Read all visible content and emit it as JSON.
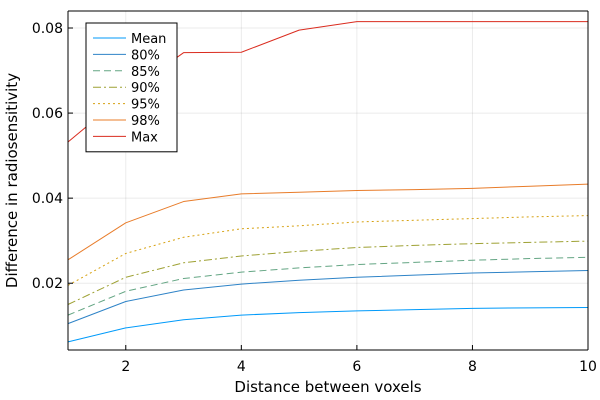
{
  "chart_data": {
    "type": "line",
    "xlabel": "Distance between voxels",
    "ylabel": "Difference in radiosensitivity",
    "xlim": [
      1,
      10
    ],
    "ylim": [
      0.0043,
      0.084
    ],
    "xticks": [
      2,
      4,
      6,
      8,
      10
    ],
    "xtick_labels": [
      "2",
      "4",
      "6",
      "8",
      "10"
    ],
    "yticks": [
      0.02,
      0.04,
      0.06,
      0.08
    ],
    "ytick_labels": [
      "0.02",
      "0.04",
      "0.06",
      "0.08"
    ],
    "grid": true,
    "legend_position": "top-left",
    "x": [
      1,
      2,
      3,
      4,
      5,
      6,
      7,
      8,
      9,
      10
    ],
    "series": [
      {
        "name": "Mean",
        "color": "#009AFA",
        "dash": "solid",
        "values": [
          0.0062,
          0.0095,
          0.0114,
          0.0125,
          0.0131,
          0.0135,
          0.0138,
          0.0141,
          0.0142,
          0.0143
        ]
      },
      {
        "name": "80%",
        "color": "#2E83C7",
        "dash": "solid",
        "values": [
          0.0105,
          0.0157,
          0.0184,
          0.0198,
          0.0207,
          0.0214,
          0.0219,
          0.0224,
          0.0227,
          0.023
        ]
      },
      {
        "name": "85%",
        "color": "#63A583",
        "dash": "dashed",
        "values": [
          0.0125,
          0.0181,
          0.0211,
          0.0226,
          0.0236,
          0.0244,
          0.0249,
          0.0254,
          0.0258,
          0.0261
        ]
      },
      {
        "name": "90%",
        "color": "#9EA133",
        "dash": "dashdot",
        "values": [
          0.015,
          0.0214,
          0.0248,
          0.0264,
          0.0275,
          0.0284,
          0.0289,
          0.0293,
          0.0296,
          0.0299
        ]
      },
      {
        "name": "95%",
        "color": "#D6A111",
        "dash": "dotted",
        "values": [
          0.0195,
          0.027,
          0.0308,
          0.0328,
          0.0335,
          0.0344,
          0.0348,
          0.0352,
          0.0356,
          0.0359
        ]
      },
      {
        "name": "98%",
        "color": "#E87C2A",
        "dash": "solid",
        "values": [
          0.0255,
          0.0342,
          0.0392,
          0.041,
          0.0414,
          0.0418,
          0.042,
          0.0423,
          0.0428,
          0.0433
        ]
      },
      {
        "name": "Max",
        "color": "#DA2C1F",
        "dash": "solid",
        "values": [
          0.0532,
          0.0645,
          0.0742,
          0.0743,
          0.0795,
          0.0815,
          0.0815,
          0.0815,
          0.0815,
          0.0815
        ]
      }
    ]
  }
}
